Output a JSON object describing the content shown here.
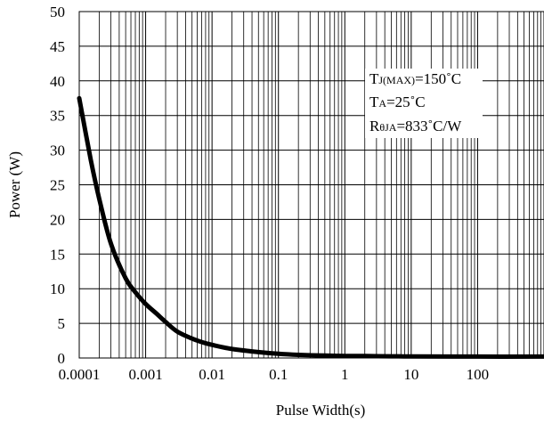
{
  "chart_data": {
    "type": "line",
    "xlabel": "Pulse Width(s)",
    "ylabel": "Power (W)",
    "x_scale": "log",
    "xlim": [
      0.0001,
      1000
    ],
    "ylim": [
      0,
      50
    ],
    "x_ticks": [
      0.0001,
      0.001,
      0.01,
      0.1,
      1,
      10,
      100
    ],
    "x_tick_labels": [
      "0.0001",
      "0.001",
      "0.01",
      "0.1",
      "1",
      "10",
      "100"
    ],
    "y_ticks": [
      0,
      5,
      10,
      15,
      20,
      25,
      30,
      35,
      40,
      45,
      50
    ],
    "y_tick_labels": [
      "0",
      "5",
      "10",
      "15",
      "20",
      "25",
      "30",
      "35",
      "40",
      "45",
      "50"
    ],
    "grid": true,
    "series": [
      {
        "x": [
          0.0001,
          0.00015,
          0.0002,
          0.0003,
          0.0005,
          0.0007,
          0.001,
          0.0015,
          0.002,
          0.003,
          0.005,
          0.007,
          0.01,
          0.02,
          0.05,
          0.1,
          0.2,
          0.5,
          1,
          2,
          5,
          10,
          100,
          1000
        ],
        "y": [
          37.5,
          28.5,
          23.0,
          16.5,
          11.5,
          9.5,
          7.8,
          6.3,
          5.2,
          3.8,
          2.8,
          2.3,
          1.9,
          1.3,
          0.85,
          0.6,
          0.45,
          0.35,
          0.3,
          0.28,
          0.25,
          0.22,
          0.2,
          0.2
        ]
      }
    ],
    "annotations": [
      {
        "id": "tj",
        "main": "T",
        "sub": "J(MAX)",
        "tail": "=150˚C"
      },
      {
        "id": "ta",
        "main": "T",
        "sub": "A",
        "tail": "=25˚C"
      },
      {
        "id": "rth",
        "main": "R",
        "sub": "θJA",
        "tail": "=833˚C/W"
      }
    ]
  }
}
